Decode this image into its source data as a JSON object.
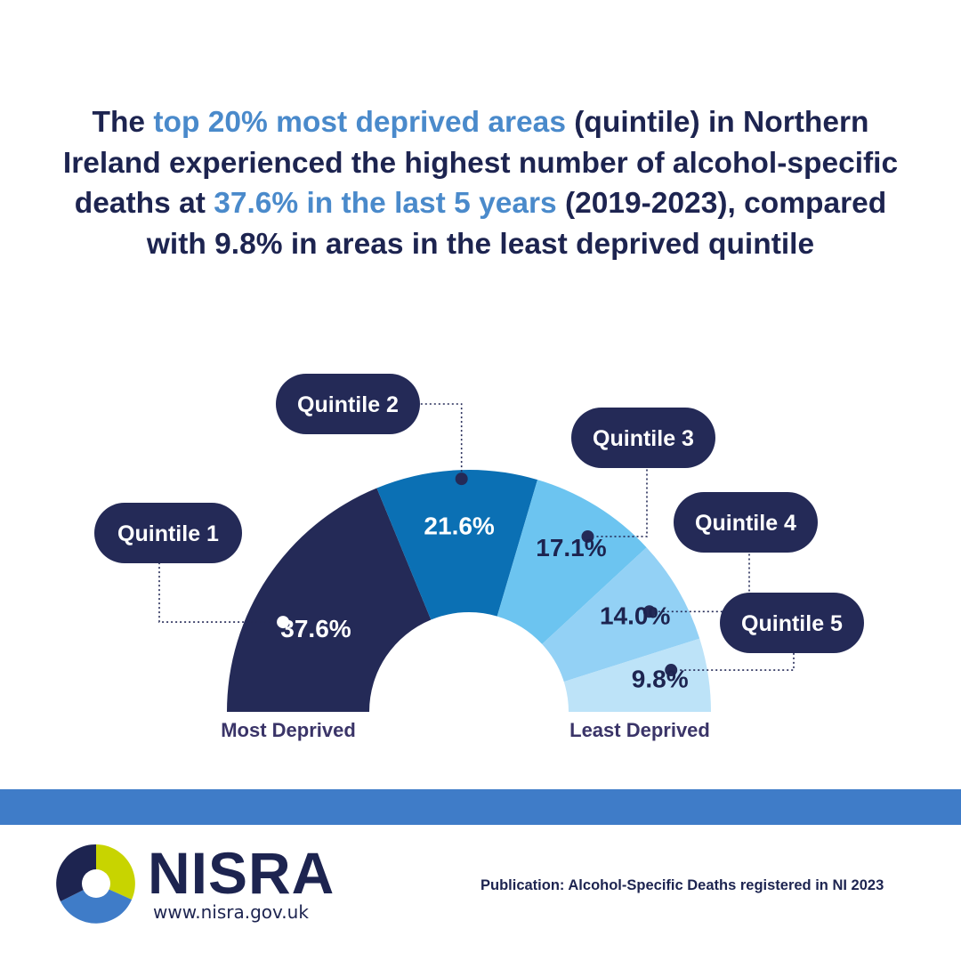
{
  "headline": {
    "p1": "The ",
    "h1": "top 20% most deprived areas",
    "p2": " (quintile) in Northern Ireland experienced the highest number of alcohol-specific deaths at ",
    "h2": "37.6% in the last 5 years",
    "p3": " (2019-2023), compared with 9.8% in areas in the least deprived quintile"
  },
  "chart_data": {
    "type": "pie",
    "shape": "half-donut",
    "categories": [
      "Quintile 1",
      "Quintile 2",
      "Quintile 3",
      "Quintile 4",
      "Quintile 5"
    ],
    "values": [
      37.6,
      21.6,
      17.1,
      14.0,
      9.8
    ],
    "value_labels": [
      "37.6%",
      "21.6%",
      "17.1%",
      "14.0%",
      "9.8%"
    ],
    "colors": [
      "#242a57",
      "#0b70b4",
      "#6cc4f0",
      "#93d1f5",
      "#bde3f8"
    ],
    "value_label_colors": [
      "#ffffff",
      "#ffffff",
      "#1d2450",
      "#1d2450",
      "#1d2450"
    ],
    "axis_left_label": "Most Deprived",
    "axis_right_label": "Least Deprived"
  },
  "footer": {
    "wordmark": "NISRA",
    "url": "www.nisra.gov.uk",
    "publication": "Publication: Alcohol-Specific Deaths registered in NI 2023"
  },
  "colors": {
    "navy": "#1d2450",
    "accent": "#4a8acb",
    "band": "#3f7cc8"
  },
  "icons": {
    "logo": "nisra-logo-icon"
  }
}
